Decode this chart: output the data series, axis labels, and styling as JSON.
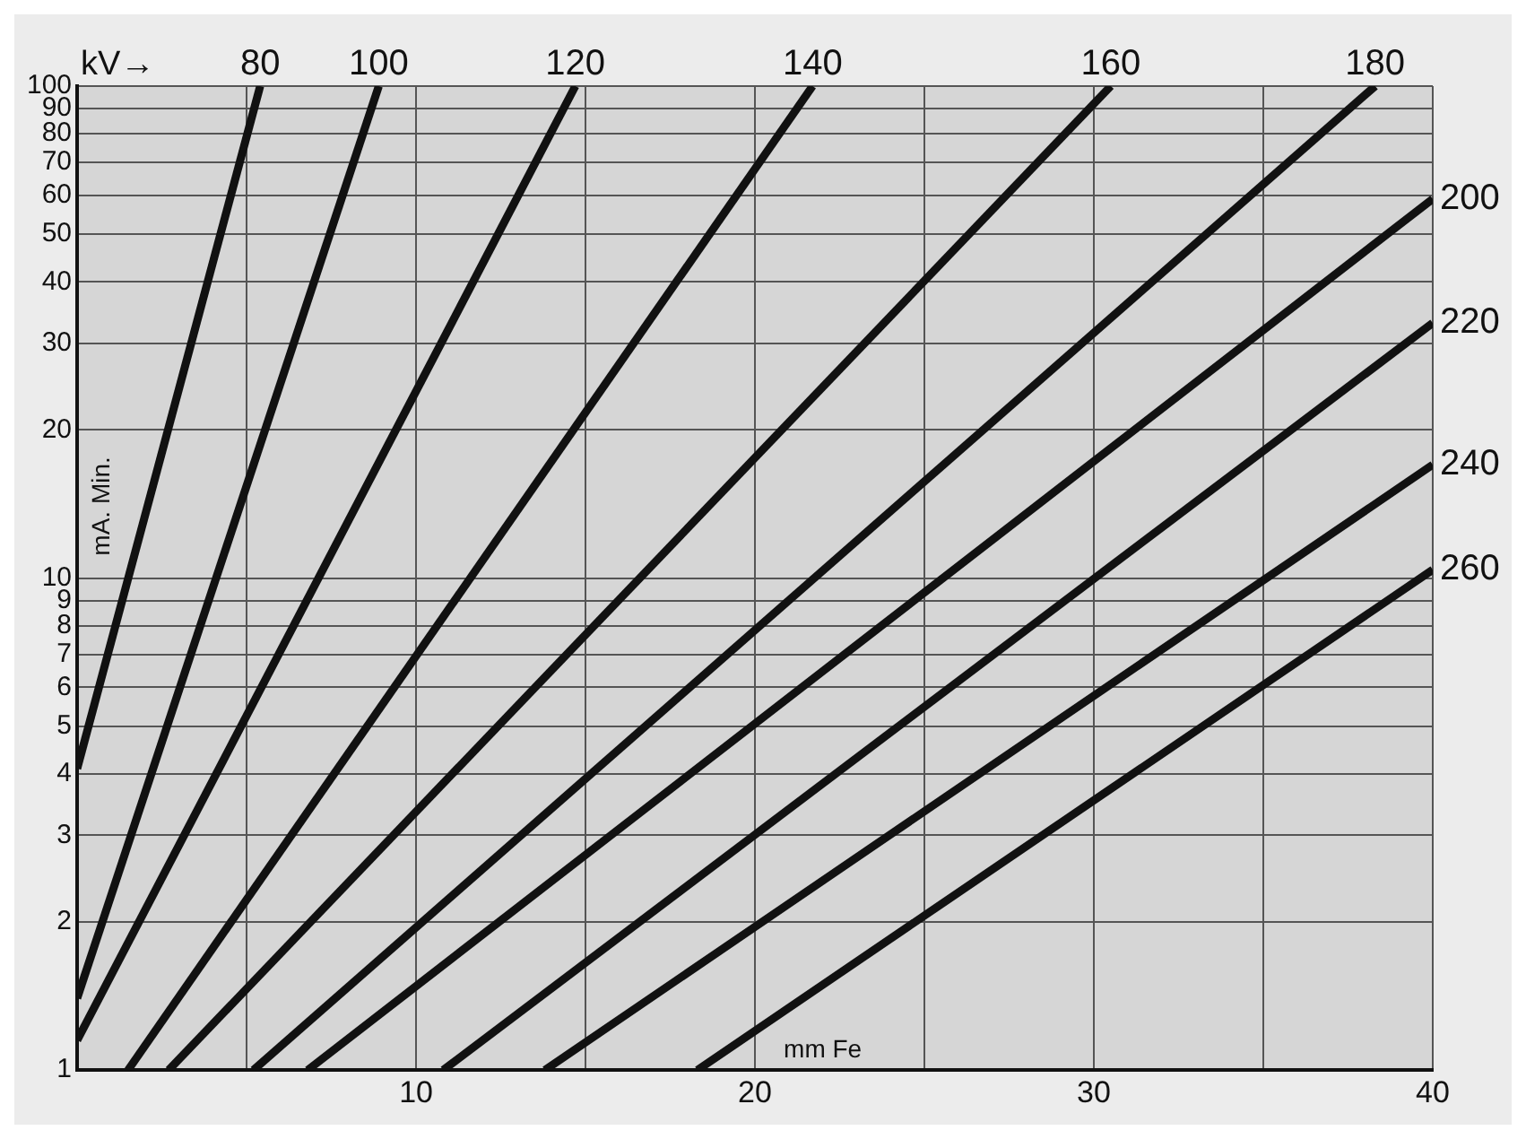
{
  "chart_data": {
    "type": "line",
    "xlabel": "mm Fe",
    "ylabel": "mA. Min.",
    "annotations": [
      "kV→"
    ],
    "xlim": [
      0,
      40
    ],
    "xticks": [
      {
        "value": 0,
        "label": null
      },
      {
        "value": 5,
        "label": null
      },
      10,
      {
        "value": 15,
        "label": null
      },
      20,
      {
        "value": 25,
        "label": null
      },
      30,
      {
        "value": 35,
        "label": null
      },
      40
    ],
    "ylim": [
      1,
      100
    ],
    "yticks": [
      1,
      2,
      3,
      4,
      5,
      6,
      7,
      8,
      9,
      10,
      20,
      30,
      40,
      50,
      60,
      70,
      80,
      90,
      100
    ],
    "log": "y",
    "grid": true,
    "legend": false,
    "marker": "none",
    "line_style": "solid",
    "series": [
      {
        "name": "80",
        "color": "#111111",
        "x": [
          0,
          5.4
        ],
        "values": [
          4.1,
          100
        ]
      },
      {
        "name": "100",
        "color": "#111111",
        "x": [
          0,
          8.9
        ],
        "values": [
          1.4,
          100
        ]
      },
      {
        "name": "120",
        "color": "#111111",
        "x": [
          0,
          14.7
        ],
        "values": [
          1.15,
          100
        ]
      },
      {
        "name": "140",
        "color": "#111111",
        "x": [
          1.5,
          21.7
        ],
        "values": [
          1,
          100
        ]
      },
      {
        "name": "160",
        "color": "#111111",
        "x": [
          2.7,
          30.5
        ],
        "values": [
          1,
          100
        ]
      },
      {
        "name": "180",
        "color": "#111111",
        "x": [
          5.2,
          38.3
        ],
        "values": [
          1,
          100
        ]
      },
      {
        "name": "200",
        "color": "#111111",
        "x": [
          6.8,
          40
        ],
        "values": [
          1,
          59
        ]
      },
      {
        "name": "220",
        "color": "#111111",
        "x": [
          10.8,
          40
        ],
        "values": [
          1,
          33
        ]
      },
      {
        "name": "240",
        "color": "#111111",
        "x": [
          13.8,
          40
        ],
        "values": [
          1,
          17
        ]
      },
      {
        "name": "260",
        "color": "#111111",
        "x": [
          18.3,
          40
        ],
        "values": [
          1,
          10.4
        ]
      }
    ]
  }
}
